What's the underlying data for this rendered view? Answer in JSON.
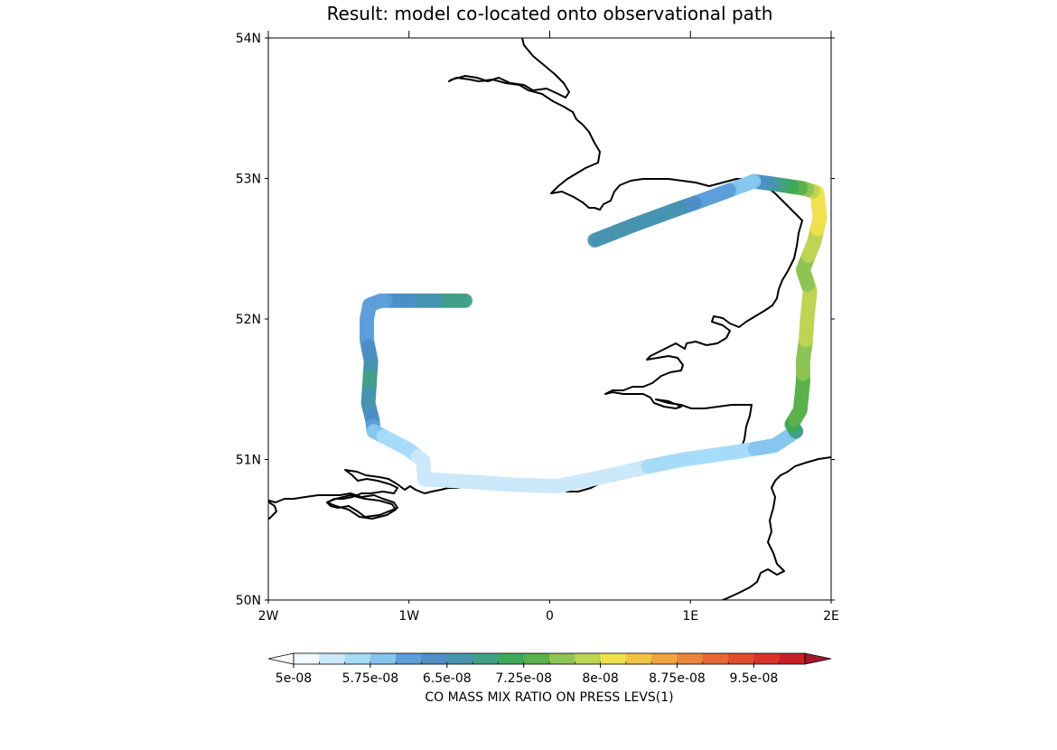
{
  "title": "Result: model co-located onto observational path",
  "chart_data": {
    "type": "map",
    "title": "Result: model co-located onto observational path",
    "lon_range": [
      -2,
      2
    ],
    "lat_range": [
      50,
      54
    ],
    "lat_ticks": [
      "50N",
      "51N",
      "52N",
      "53N",
      "54N"
    ],
    "lat_tick_values": [
      50,
      51,
      52,
      53,
      54
    ],
    "lon_ticks": [
      "2W",
      "1W",
      "0",
      "1E",
      "2E"
    ],
    "lon_tick_values": [
      -2,
      -1,
      0,
      1,
      2
    ],
    "colorbar": {
      "label": "CO MASS MIX RATIO ON PRESS LEVS(1)",
      "tick_labels": [
        "5e-08",
        "5.75e-08",
        "6.5e-08",
        "7.25e-08",
        "8e-08",
        "8.75e-08",
        "9.5e-08"
      ],
      "tick_values": [
        5e-08,
        5.75e-08,
        6.5e-08,
        7.25e-08,
        8e-08,
        8.75e-08,
        9.5e-08
      ],
      "levels": [
        5e-08,
        5.25e-08,
        5.5e-08,
        5.75e-08,
        6e-08,
        6.25e-08,
        6.5e-08,
        6.75e-08,
        7e-08,
        7.25e-08,
        7.5e-08,
        7.75e-08,
        8e-08,
        8.25e-08,
        8.5e-08,
        8.75e-08,
        9e-08,
        9.25e-08,
        9.5e-08,
        9.75e-08,
        1e-07
      ],
      "colors": [
        "#f2f9fe",
        "#cce9fb",
        "#a6dcf8",
        "#86c6ee",
        "#5c9fd9",
        "#4d8fc6",
        "#4694b0",
        "#41a087",
        "#3fa95a",
        "#5ab24a",
        "#8dc454",
        "#bcd553",
        "#efe14e",
        "#f2c444",
        "#f0a340",
        "#ec853a",
        "#e76834",
        "#e14c2f",
        "#d83429",
        "#c91f27"
      ],
      "under_color": "#ffffff",
      "over_color": "#a3172b",
      "extend": "both"
    },
    "track_segments": [
      {
        "points": [
          [
            -0.6,
            52.13
          ],
          [
            -0.85,
            52.13
          ],
          [
            -1.2,
            52.13
          ],
          [
            -1.28,
            52.1
          ],
          [
            -1.3,
            52.0
          ],
          [
            -1.3,
            51.85
          ],
          [
            -1.27,
            51.7
          ],
          [
            -1.28,
            51.55
          ],
          [
            -1.29,
            51.4
          ],
          [
            -1.26,
            51.28
          ],
          [
            -1.25,
            51.2
          ]
        ],
        "values": [
          6.9e-08,
          6.7e-08,
          6.2e-08,
          6.15e-08,
          6.1e-08,
          6.2e-08,
          6.4e-08,
          6.9e-08,
          6.6e-08,
          6.4e-08,
          6e-08
        ]
      },
      {
        "points": [
          [
            -1.25,
            51.2
          ],
          [
            -1.0,
            51.07
          ],
          [
            -0.9,
            50.99
          ],
          [
            -0.89,
            50.86
          ],
          [
            -0.55,
            50.84
          ],
          [
            -0.25,
            50.82
          ],
          [
            0.05,
            50.81
          ],
          [
            0.35,
            50.87
          ],
          [
            0.7,
            50.95
          ],
          [
            0.95,
            51.0
          ],
          [
            1.3,
            51.05
          ],
          [
            1.6,
            51.1
          ],
          [
            1.75,
            51.2
          ]
        ],
        "values": [
          5.8e-08,
          5.6e-08,
          5.4e-08,
          5.35e-08,
          5.3e-08,
          5.3e-08,
          5.3e-08,
          5.4e-08,
          5.5e-08,
          5.6e-08,
          5.7e-08,
          5.8e-08,
          6e-08
        ]
      },
      {
        "points": [
          [
            1.75,
            51.2
          ],
          [
            1.72,
            51.25
          ],
          [
            1.78,
            51.35
          ],
          [
            1.8,
            51.55
          ],
          [
            1.8,
            51.7
          ],
          [
            1.82,
            51.85
          ],
          [
            1.83,
            52.0
          ],
          [
            1.85,
            52.2
          ],
          [
            1.8,
            52.35
          ],
          [
            1.88,
            52.55
          ],
          [
            1.92,
            52.72
          ],
          [
            1.9,
            52.9
          ],
          [
            1.8,
            52.93
          ],
          [
            1.6,
            52.96
          ],
          [
            1.45,
            52.98
          ]
        ],
        "values": [
          6.8e-08,
          7.2e-08,
          7.35e-08,
          7.45e-08,
          7.6e-08,
          7.75e-08,
          7.85e-08,
          7.8e-08,
          7.6e-08,
          7.9e-08,
          8.1e-08,
          8.1e-08,
          7.5e-08,
          6.8e-08,
          6.3e-08
        ]
      },
      {
        "points": [
          [
            1.45,
            52.98
          ],
          [
            1.1,
            52.85
          ],
          [
            0.9,
            52.78
          ],
          [
            0.6,
            52.67
          ],
          [
            0.32,
            52.56
          ]
        ],
        "values": [
          5.9e-08,
          6.1e-08,
          6.6e-08,
          6.6e-08,
          6.6e-08
        ]
      }
    ]
  }
}
